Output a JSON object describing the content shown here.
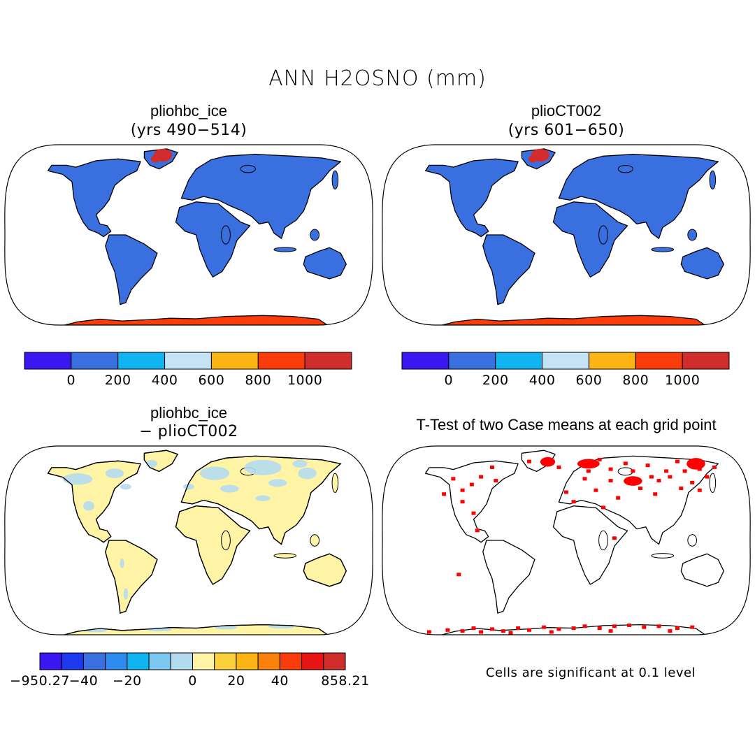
{
  "title": "ANN H2OSNO (mm)",
  "panels": [
    {
      "title": "pliohbc_ice",
      "subtitle": "(yrs 490−514)"
    },
    {
      "title": "plioCT002",
      "subtitle": "(yrs 601−650)"
    },
    {
      "title": "pliohbc_ice",
      "subtitle": "− plioCT002"
    },
    {
      "title": "T-Test of two Case means at each grid point",
      "subtitle": ""
    }
  ],
  "colorbars": {
    "mean": {
      "colors": [
        "#3a17f0",
        "#3a6fdf",
        "#10b4f0",
        "#c4e4f5",
        "#fbb414",
        "#fa3c0a",
        "#d22d2d"
      ],
      "labels": [
        "0",
        "200",
        "400",
        "600",
        "800",
        "1000"
      ]
    },
    "diff": {
      "colors": [
        "#3a17f0",
        "#1e38f0",
        "#3a6fdf",
        "#2e8cf0",
        "#10b4f0",
        "#7cc8f0",
        "#b4dcf0",
        "#fff4a6",
        "#fcd23c",
        "#fbb414",
        "#fa820a",
        "#fa3c0a",
        "#e61414",
        "#d22d2d"
      ],
      "labels": [
        "−950.27",
        "−40",
        "−20",
        "0",
        "20",
        "40",
        "858.21"
      ]
    }
  },
  "note": "Cells are significant at 0.1 level",
  "map_colors": {
    "ocean": "#ffffff",
    "land_mean": "#3a6fdf",
    "antarctica_mean": "#fa3c0a",
    "greenland_mean": "#d22d2d",
    "land_diff": "#fff4a6",
    "diff_patch": "#b4dcf0",
    "significance": "#ff0000",
    "coast": "#000000"
  }
}
